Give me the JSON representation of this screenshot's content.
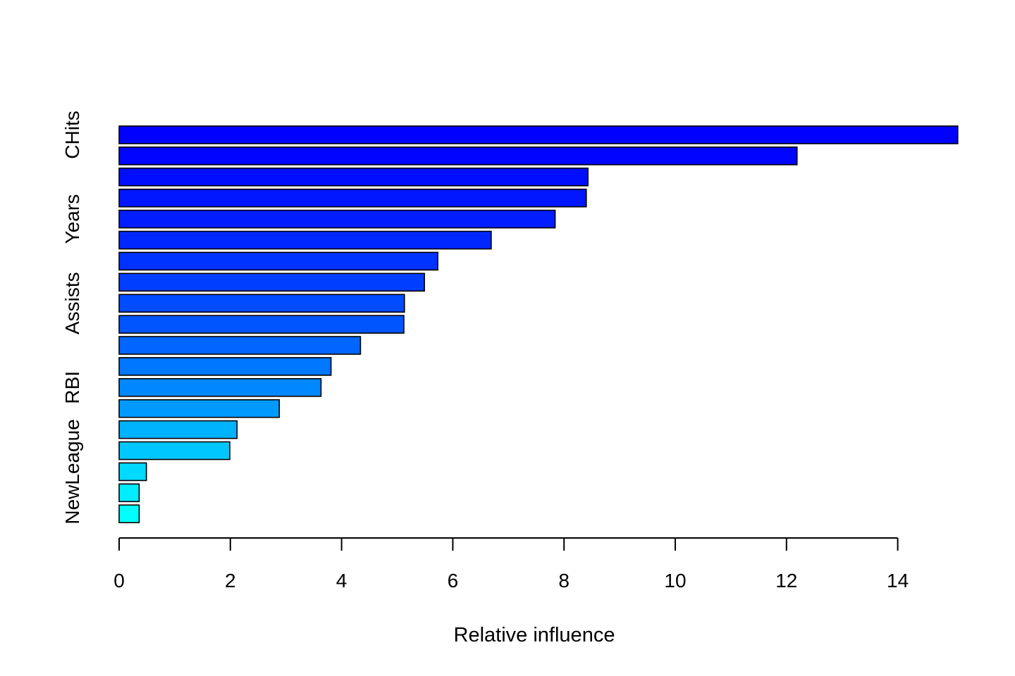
{
  "chart_data": {
    "type": "bar",
    "orientation": "horizontal",
    "title": "",
    "xlabel": "Relative influence",
    "ylabel": "",
    "xlim": [
      0,
      15.1
    ],
    "x_ticks": [
      0,
      2,
      4,
      6,
      8,
      10,
      12,
      14
    ],
    "x_tick_labels": [
      "0",
      "2",
      "4",
      "6",
      "8",
      "10",
      "12",
      "14"
    ],
    "y_tick_labels": [
      "CHits",
      "Years",
      "Assists",
      "RBI",
      "NewLeague"
    ],
    "y_tick_rows": [
      0,
      4,
      8,
      12,
      16
    ],
    "grid": false,
    "legend": "none",
    "values": [
      15.08,
      12.19,
      8.43,
      8.4,
      7.84,
      6.69,
      5.73,
      5.49,
      5.13,
      5.12,
      4.34,
      3.81,
      3.63,
      2.88,
      2.12,
      1.99,
      0.49,
      0.36,
      0.36
    ],
    "colors": [
      "#0000ff",
      "#0005ff",
      "#000dff",
      "#0016ff",
      "#001eff",
      "#0027ff",
      "#0033ff",
      "#003fff",
      "#004cff",
      "#0055ff",
      "#0066ff",
      "#0077ff",
      "#0088ff",
      "#009aff",
      "#00b3ff",
      "#00c8ff",
      "#00daff",
      "#00ecff",
      "#00ffff"
    ]
  }
}
